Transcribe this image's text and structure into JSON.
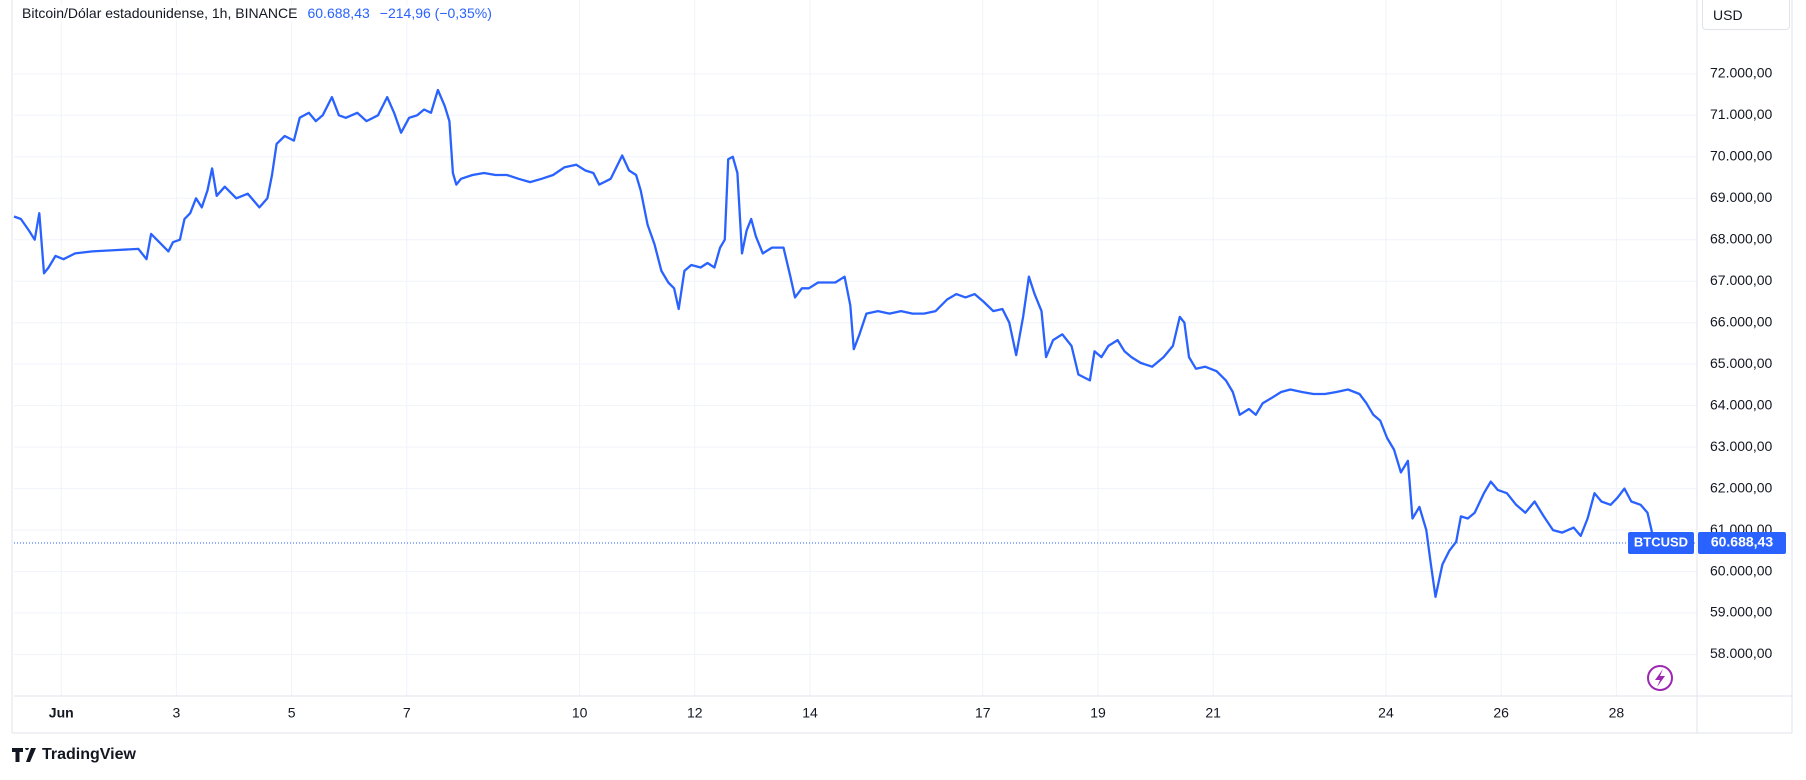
{
  "chart_data": {
    "type": "line",
    "title": "Bitcoin/Dólar estadounidense, 1h, BINANCE",
    "last_price": {
      "value": 60688.43,
      "label": "60.688,43"
    },
    "change": "−214,96 (−0,35%)",
    "currency": "USD",
    "brand": "TradingView",
    "x": [
      0.18,
      0.3,
      0.44,
      0.54,
      0.62,
      0.7,
      0.78,
      0.9,
      1.04,
      1.24,
      1.54,
      1.94,
      2.34,
      2.48,
      2.56,
      2.74,
      2.86,
      2.94,
      3.06,
      3.14,
      3.24,
      3.34,
      3.44,
      3.54,
      3.62,
      3.7,
      3.84,
      4.04,
      4.24,
      4.44,
      4.58,
      4.66,
      4.74,
      4.88,
      5.04,
      5.14,
      5.3,
      5.42,
      5.54,
      5.7,
      5.82,
      5.94,
      6.14,
      6.3,
      6.5,
      6.66,
      6.78,
      6.9,
      7.04,
      7.18,
      7.3,
      7.42,
      7.54,
      7.66,
      7.74,
      7.8,
      7.86,
      7.94,
      8.14,
      8.34,
      8.54,
      8.74,
      8.94,
      9.14,
      9.34,
      9.54,
      9.74,
      9.94,
      10.1,
      10.24,
      10.34,
      10.54,
      10.74,
      10.86,
      10.98,
      11.06,
      11.18,
      11.3,
      11.42,
      11.54,
      11.64,
      11.72,
      11.82,
      11.94,
      12.1,
      12.22,
      12.34,
      12.44,
      12.52,
      12.58,
      12.66,
      12.74,
      12.82,
      12.9,
      12.98,
      13.06,
      13.18,
      13.34,
      13.54,
      13.66,
      13.74,
      13.86,
      13.98,
      14.14,
      14.3,
      14.44,
      14.6,
      14.7,
      14.76,
      14.86,
      14.98,
      15.18,
      15.38,
      15.58,
      15.78,
      15.98,
      16.18,
      16.38,
      16.54,
      16.7,
      16.86,
      17.02,
      17.18,
      17.34,
      17.46,
      17.58,
      17.7,
      17.8,
      17.9,
      18.02,
      18.1,
      18.22,
      18.38,
      18.54,
      18.66,
      18.86,
      18.94,
      19.06,
      19.18,
      19.34,
      19.46,
      19.58,
      19.74,
      19.94,
      20.14,
      20.3,
      20.42,
      20.5,
      20.58,
      20.7,
      20.86,
      21.06,
      21.22,
      21.34,
      21.46,
      21.62,
      21.74,
      21.86,
      22.02,
      22.18,
      22.34,
      22.54,
      22.74,
      22.94,
      23.14,
      23.34,
      23.54,
      23.66,
      23.78,
      23.9,
      24.02,
      24.14,
      24.26,
      24.38,
      24.46,
      24.58,
      24.7,
      24.78,
      24.86,
      24.98,
      25.1,
      25.22,
      25.3,
      25.42,
      25.54,
      25.7,
      25.82,
      25.94,
      26.1,
      26.26,
      26.42,
      26.58,
      26.74,
      26.9,
      27.06,
      27.26,
      27.38,
      27.5,
      27.62,
      27.74,
      27.9,
      28.02,
      28.14,
      28.26,
      28.42,
      28.54,
      28.66
    ],
    "series": [
      {
        "name": "BTCUSD",
        "color": "#2962ff",
        "values": [
          68560,
          68500,
          68220,
          68000,
          68640,
          67190,
          67330,
          67610,
          67530,
          67670,
          67720,
          67750,
          67780,
          67530,
          68140,
          67890,
          67720,
          67940,
          68000,
          68500,
          68640,
          69000,
          68780,
          69190,
          69720,
          69060,
          69280,
          69000,
          69110,
          68780,
          69000,
          69560,
          70310,
          70500,
          70390,
          70940,
          71060,
          70860,
          71000,
          71440,
          71000,
          70940,
          71060,
          70860,
          71000,
          71440,
          71060,
          70580,
          70940,
          71000,
          71140,
          71060,
          71610,
          71220,
          70860,
          69610,
          69330,
          69470,
          69560,
          69610,
          69560,
          69560,
          69470,
          69390,
          69470,
          69560,
          69750,
          69810,
          69670,
          69610,
          69330,
          69470,
          70030,
          69670,
          69560,
          69190,
          68360,
          67890,
          67250,
          66970,
          66830,
          66330,
          67250,
          67390,
          67330,
          67440,
          67330,
          67810,
          68000,
          69940,
          70000,
          69610,
          67670,
          68220,
          68500,
          68080,
          67670,
          67810,
          67810,
          67110,
          66610,
          66830,
          66830,
          66970,
          66970,
          66970,
          67110,
          66420,
          65360,
          65720,
          66220,
          66280,
          66220,
          66280,
          66220,
          66220,
          66280,
          66560,
          66690,
          66610,
          66690,
          66500,
          66280,
          66330,
          66000,
          65220,
          66140,
          67110,
          66690,
          66280,
          65170,
          65580,
          65720,
          65440,
          64750,
          64610,
          65310,
          65170,
          65440,
          65580,
          65310,
          65170,
          65030,
          64940,
          65170,
          65440,
          66140,
          66000,
          65170,
          64890,
          64940,
          64830,
          64610,
          64330,
          63780,
          63920,
          63780,
          64060,
          64190,
          64330,
          64390,
          64330,
          64280,
          64280,
          64330,
          64390,
          64280,
          64060,
          63780,
          63640,
          63220,
          62940,
          62390,
          62670,
          61280,
          61560,
          61000,
          60170,
          59390,
          60170,
          60500,
          60720,
          61330,
          61280,
          61420,
          61890,
          62170,
          61970,
          61890,
          61610,
          61420,
          61690,
          61330,
          61000,
          60940,
          61060,
          60860,
          61280,
          61890,
          61690,
          61610,
          61780,
          62000,
          61690,
          61610,
          61420,
          60688.43
        ]
      }
    ],
    "xlim": [
      0.18,
      29.4
    ],
    "xticks": [
      {
        "value": 1,
        "label": "Jun"
      },
      3,
      5,
      7,
      10,
      12,
      14,
      17,
      19,
      21,
      24,
      26,
      28
    ],
    "ylim": [
      57000,
      73780
    ],
    "yticks": [
      {
        "value": 58000,
        "label": "58.000,00"
      },
      {
        "value": 59000,
        "label": "59.000,00"
      },
      {
        "value": 60000,
        "label": "60.000,00"
      },
      {
        "value": 61000,
        "label": "61.000,00"
      },
      {
        "value": 62000,
        "label": "62.000,00"
      },
      {
        "value": 63000,
        "label": "63.000,00"
      },
      {
        "value": 64000,
        "label": "64.000,00"
      },
      {
        "value": 65000,
        "label": "65.000,00"
      },
      {
        "value": 66000,
        "label": "66.000,00"
      },
      {
        "value": 67000,
        "label": "67.000,00"
      },
      {
        "value": 68000,
        "label": "68.000,00"
      },
      {
        "value": 69000,
        "label": "69.000,00"
      },
      {
        "value": 70000,
        "label": "70.000,00"
      },
      {
        "value": 71000,
        "label": "71.000,00"
      },
      {
        "value": 72000,
        "label": "72.000,00"
      }
    ],
    "grid": true
  }
}
